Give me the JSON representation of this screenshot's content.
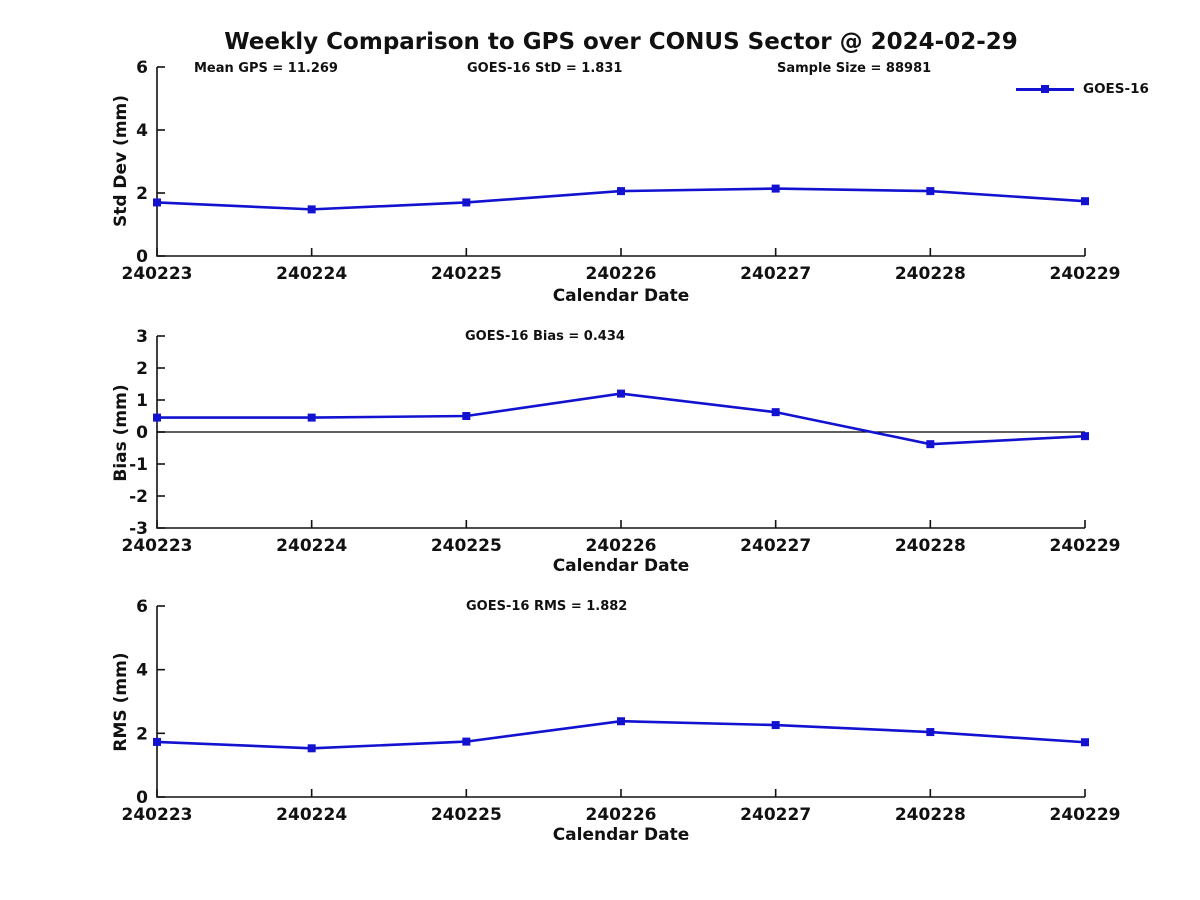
{
  "title": "Weekly Comparison to GPS over CONUS Sector @ 2024-02-29",
  "header": {
    "mean_gps": "Mean GPS = 11.269",
    "std": "GOES-16 StD = 1.831",
    "sample_size": "Sample Size = 88981"
  },
  "annotations": {
    "bias": "GOES-16 Bias  = 0.434",
    "rms": "GOES-16 RMS = 1.882"
  },
  "legend": {
    "label": "GOES-16",
    "color": "#1212d0"
  },
  "colors": {
    "line": "#1212d0",
    "axis": "#111111",
    "zero_line": "#000000",
    "background": "#ffffff"
  },
  "chart_data": [
    {
      "type": "line",
      "name": "std-dev",
      "title": "",
      "xlabel": "Calendar Date",
      "ylabel": "Std Dev (mm)",
      "categories": [
        "240223",
        "240224",
        "240225",
        "240226",
        "240227",
        "240228",
        "240229"
      ],
      "yticks": [
        0,
        2,
        4,
        6
      ],
      "ylim": [
        0,
        6
      ],
      "grid": false,
      "zero_line": false,
      "series": [
        {
          "name": "GOES-16",
          "color": "#1212d0",
          "values": [
            1.7,
            1.48,
            1.7,
            2.06,
            2.14,
            2.06,
            1.74
          ]
        }
      ]
    },
    {
      "type": "line",
      "name": "bias",
      "title": "",
      "xlabel": "Calendar Date",
      "ylabel": "Bias (mm)",
      "categories": [
        "240223",
        "240224",
        "240225",
        "240226",
        "240227",
        "240228",
        "240229"
      ],
      "yticks": [
        -3,
        -2,
        -1,
        0,
        1,
        2,
        3
      ],
      "ylim": [
        -3,
        3
      ],
      "grid": false,
      "zero_line": true,
      "series": [
        {
          "name": "GOES-16",
          "color": "#1212d0",
          "values": [
            0.45,
            0.45,
            0.5,
            1.2,
            0.62,
            -0.38,
            -0.13
          ]
        }
      ]
    },
    {
      "type": "line",
      "name": "rms",
      "title": "",
      "xlabel": "Calendar Date",
      "ylabel": "RMS (mm)",
      "categories": [
        "240223",
        "240224",
        "240225",
        "240226",
        "240227",
        "240228",
        "240229"
      ],
      "yticks": [
        0,
        2,
        4,
        6
      ],
      "ylim": [
        0,
        6
      ],
      "grid": false,
      "zero_line": false,
      "series": [
        {
          "name": "GOES-16",
          "color": "#1212d0",
          "values": [
            1.73,
            1.53,
            1.74,
            2.38,
            2.26,
            2.04,
            1.72
          ]
        }
      ]
    }
  ]
}
